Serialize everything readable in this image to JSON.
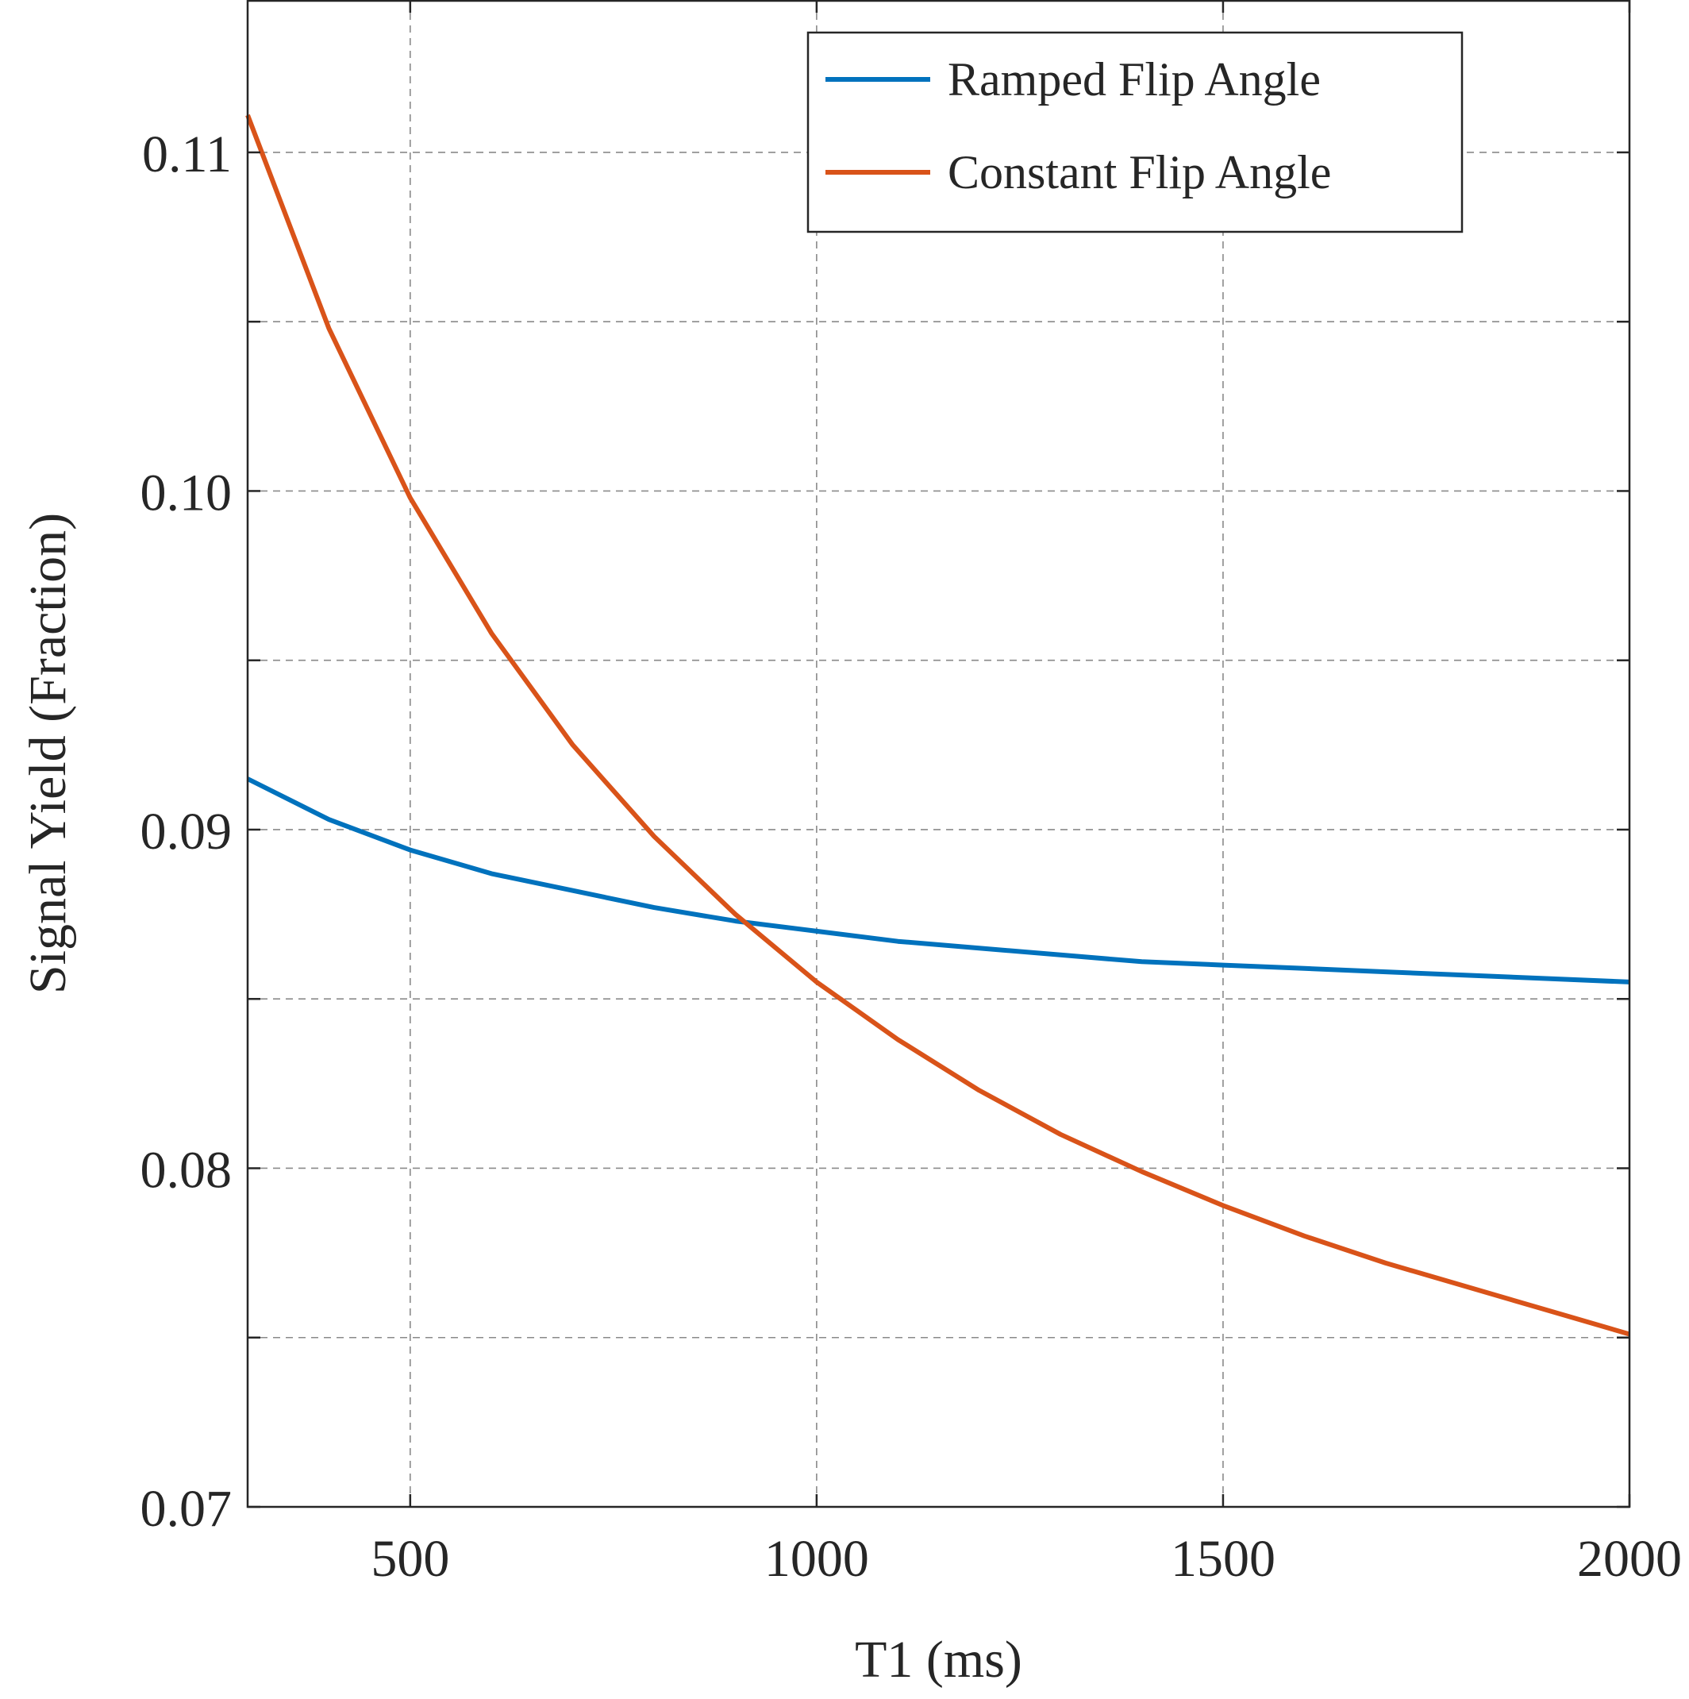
{
  "chart_data": {
    "type": "line",
    "title": "",
    "xlabel": "T1 (ms)",
    "ylabel": "Signal Yield (Fraction)",
    "xlim": [
      300,
      2000
    ],
    "ylim": [
      0.07,
      0.1145
    ],
    "x_ticks": [
      500,
      1000,
      1500,
      2000
    ],
    "x_tick_labels": [
      "500",
      "1000",
      "1500",
      "2000"
    ],
    "y_ticks": [
      0.07,
      0.08,
      0.09,
      0.1,
      0.11
    ],
    "y_tick_labels": [
      "0.07",
      "0.08",
      "0.09",
      "0.10",
      "0.11"
    ],
    "y_minor_ticks": [
      0.075,
      0.085,
      0.095,
      0.105
    ],
    "grid": true,
    "legend_position": "top-right",
    "x": [
      300,
      400,
      500,
      600,
      700,
      800,
      900,
      1000,
      1100,
      1200,
      1300,
      1400,
      1500,
      1600,
      1700,
      1800,
      1900,
      2000
    ],
    "series": [
      {
        "name": "Ramped Flip Angle",
        "color": "#0072BD",
        "values": [
          0.0915,
          0.0903,
          0.0894,
          0.0887,
          0.0882,
          0.0877,
          0.0873,
          0.087,
          0.0867,
          0.0865,
          0.0863,
          0.0861,
          0.086,
          0.0859,
          0.0858,
          0.0857,
          0.0856,
          0.0855
        ]
      },
      {
        "name": "Constant Flip Angle",
        "color": "#D95319",
        "values": [
          0.1111,
          0.1048,
          0.0998,
          0.0958,
          0.0925,
          0.0898,
          0.0875,
          0.0855,
          0.0838,
          0.0823,
          0.081,
          0.0799,
          0.0789,
          0.078,
          0.0772,
          0.0765,
          0.0758,
          0.0751
        ]
      }
    ]
  }
}
